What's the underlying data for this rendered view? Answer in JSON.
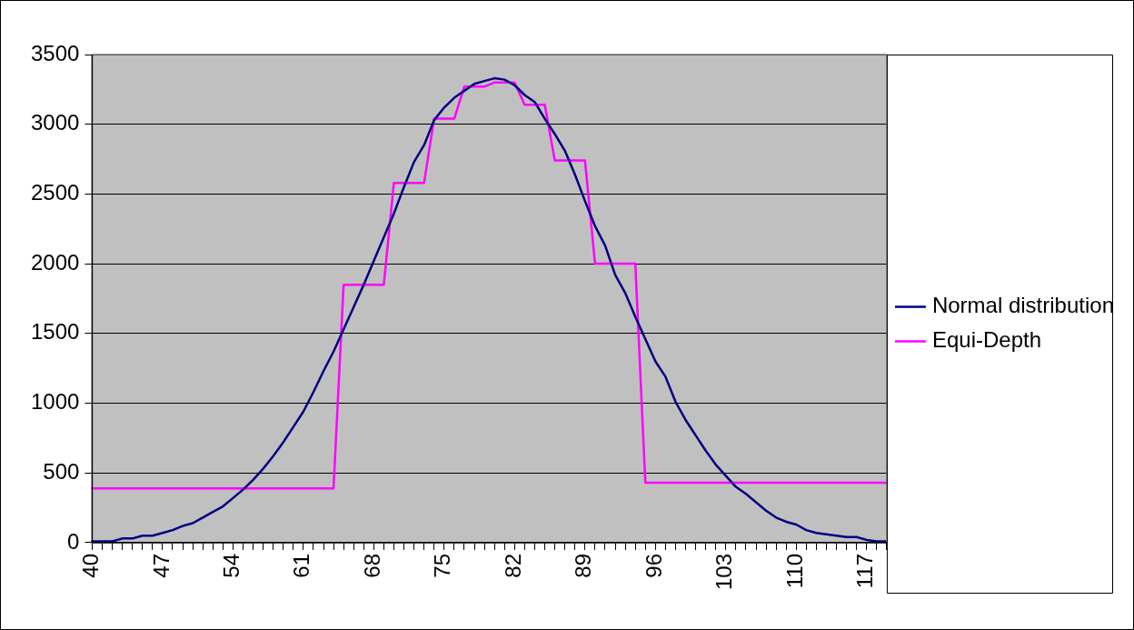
{
  "chart_data": {
    "type": "line",
    "categories": [
      "40",
      null,
      null,
      null,
      null,
      null,
      null,
      "47",
      null,
      null,
      null,
      null,
      null,
      null,
      "54",
      null,
      null,
      null,
      null,
      null,
      null,
      "61",
      null,
      null,
      null,
      null,
      null,
      null,
      "68",
      null,
      null,
      null,
      null,
      null,
      null,
      "75",
      null,
      null,
      null,
      null,
      null,
      null,
      "82",
      null,
      null,
      null,
      null,
      null,
      null,
      "89",
      null,
      null,
      null,
      null,
      null,
      null,
      "96",
      null,
      null,
      null,
      null,
      null,
      null,
      "103",
      null,
      null,
      null,
      null,
      null,
      null,
      "110",
      null,
      null,
      null,
      null,
      null,
      null,
      "117",
      null,
      null
    ],
    "series": [
      {
        "name": "Normal distribution",
        "color": "#000080",
        "values": [
          10,
          10,
          10,
          30,
          30,
          50,
          50,
          70,
          90,
          120,
          140,
          180,
          220,
          260,
          320,
          380,
          450,
          530,
          620,
          720,
          830,
          940,
          1080,
          1230,
          1370,
          1530,
          1690,
          1850,
          2020,
          2190,
          2360,
          2550,
          2730,
          2850,
          3030,
          3120,
          3190,
          3240,
          3290,
          3310,
          3330,
          3320,
          3280,
          3210,
          3160,
          3040,
          2930,
          2810,
          2640,
          2450,
          2270,
          2130,
          1920,
          1790,
          1620,
          1460,
          1300,
          1190,
          1010,
          880,
          770,
          660,
          560,
          480,
          400,
          350,
          290,
          230,
          180,
          150,
          130,
          90,
          70,
          60,
          50,
          40,
          40,
          20,
          10,
          10
        ]
      },
      {
        "name": "Equi-Depth",
        "color": "#ff00ff",
        "values": [
          390,
          390,
          390,
          390,
          390,
          390,
          390,
          390,
          390,
          390,
          390,
          390,
          390,
          390,
          390,
          390,
          390,
          390,
          390,
          390,
          390,
          390,
          390,
          390,
          390,
          1850,
          1850,
          1850,
          1850,
          1850,
          2580,
          2580,
          2580,
          2580,
          3040,
          3040,
          3040,
          3270,
          3270,
          3270,
          3300,
          3300,
          3300,
          3140,
          3140,
          3140,
          2740,
          2740,
          2740,
          2740,
          2000,
          2000,
          2000,
          2000,
          2000,
          430,
          430,
          430,
          430,
          430,
          430,
          430,
          430,
          430,
          430,
          430,
          430,
          430,
          430,
          430,
          430,
          430,
          430,
          430,
          430,
          430,
          430,
          430,
          430,
          430
        ]
      }
    ],
    "ylim": [
      0,
      3500
    ],
    "yticks": [
      0,
      500,
      1000,
      1500,
      2000,
      2500,
      3000,
      3500
    ],
    "grid": "y",
    "legend": "right",
    "marker": "none",
    "line_style": "solid"
  }
}
